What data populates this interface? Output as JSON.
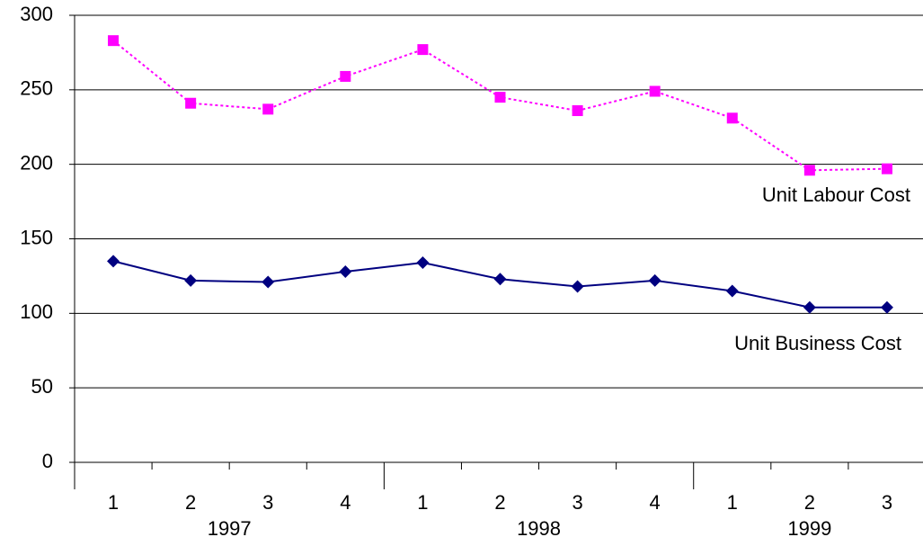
{
  "chart_data": {
    "type": "line",
    "categories": [
      "1",
      "2",
      "3",
      "4",
      "1",
      "2",
      "3",
      "4",
      "1",
      "2",
      "3"
    ],
    "category_groups": [
      "1997",
      null,
      null,
      null,
      "1998",
      null,
      null,
      null,
      "1999",
      null,
      null
    ],
    "series": [
      {
        "name": "Unit Labour Cost",
        "color": "#ff00ff",
        "line_style": "dotted",
        "marker": "square",
        "values": [
          283,
          241,
          237,
          259,
          277,
          245,
          236,
          249,
          231,
          196,
          197
        ]
      },
      {
        "name": "Unit Business Cost",
        "color": "#000080",
        "line_style": "solid",
        "marker": "diamond",
        "values": [
          135,
          122,
          121,
          128,
          134,
          123,
          118,
          122,
          115,
          104,
          104
        ]
      }
    ],
    "ylim": [
      0,
      300
    ],
    "yticks": [
      0,
      50,
      100,
      150,
      200,
      250,
      300
    ],
    "grid": true
  }
}
